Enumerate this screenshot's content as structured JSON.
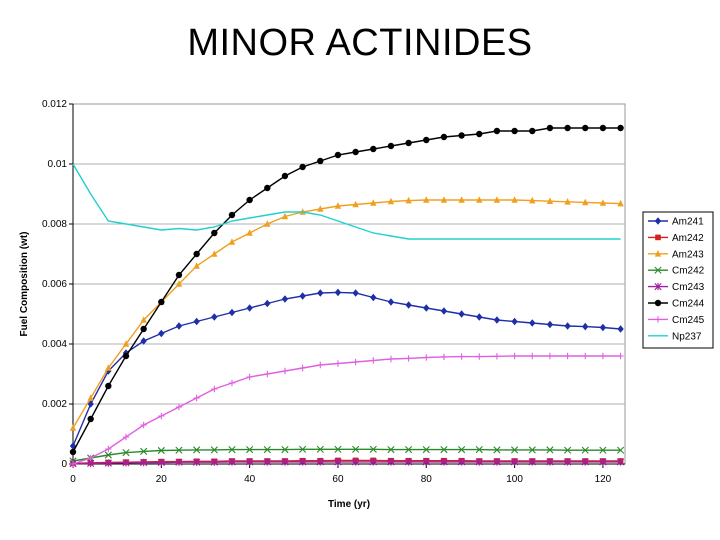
{
  "slide": {
    "title": "MINOR ACTINIDES"
  },
  "chart_data": {
    "type": "line",
    "xlabel": "Time (yr)",
    "ylabel": "Fuel Composition (wt)",
    "xlim": [
      0,
      125
    ],
    "ylim": [
      0,
      0.012
    ],
    "xticks": [
      0,
      20,
      40,
      60,
      80,
      100,
      120
    ],
    "yticks": [
      0,
      0.002,
      0.004,
      0.006,
      0.008,
      0.01,
      0.012
    ],
    "ytick_labels": [
      "0",
      "0.002",
      "0.004",
      "0.006",
      "0.008",
      "0.01",
      "0.012"
    ],
    "grid": "horizontal",
    "legend_position": "right",
    "x": [
      0,
      4,
      8,
      12,
      16,
      20,
      24,
      28,
      32,
      36,
      40,
      44,
      48,
      52,
      56,
      60,
      64,
      68,
      72,
      76,
      80,
      84,
      88,
      92,
      96,
      100,
      104,
      108,
      112,
      116,
      120,
      124
    ],
    "series": [
      {
        "name": "Am241",
        "color": "#1f2fa8",
        "marker": "diamond",
        "values": [
          0.0006,
          0.002,
          0.0031,
          0.0037,
          0.0041,
          0.00435,
          0.0046,
          0.00475,
          0.0049,
          0.00505,
          0.0052,
          0.00535,
          0.0055,
          0.0056,
          0.0057,
          0.00572,
          0.0057,
          0.00555,
          0.0054,
          0.0053,
          0.0052,
          0.0051,
          0.005,
          0.0049,
          0.0048,
          0.00475,
          0.0047,
          0.00465,
          0.0046,
          0.00458,
          0.00455,
          0.0045
        ]
      },
      {
        "name": "Am242",
        "color": "#d42020",
        "marker": "square",
        "values": [
          2e-05,
          4e-05,
          5e-05,
          6e-05,
          7e-05,
          8e-05,
          8e-05,
          9e-05,
          9e-05,
          0.0001,
          0.0001,
          0.0001,
          0.0001,
          0.00011,
          0.00011,
          0.00012,
          0.00012,
          0.00012,
          0.00011,
          0.00011,
          0.00011,
          0.00011,
          0.00011,
          0.0001,
          0.0001,
          0.0001,
          0.0001,
          0.0001,
          0.0001,
          0.0001,
          0.0001,
          0.0001
        ]
      },
      {
        "name": "Am243",
        "color": "#f0a020",
        "marker": "triangle",
        "values": [
          0.0012,
          0.0022,
          0.0032,
          0.004,
          0.0048,
          0.0054,
          0.006,
          0.0066,
          0.007,
          0.0074,
          0.0077,
          0.008,
          0.00825,
          0.0084,
          0.0085,
          0.0086,
          0.00865,
          0.0087,
          0.00875,
          0.00878,
          0.0088,
          0.0088,
          0.0088,
          0.0088,
          0.0088,
          0.0088,
          0.00878,
          0.00876,
          0.00874,
          0.00872,
          0.0087,
          0.00868
        ]
      },
      {
        "name": "Cm242",
        "color": "#2a8a2a",
        "marker": "x",
        "values": [
          0.0001,
          0.0002,
          0.0003,
          0.00038,
          0.00042,
          0.00045,
          0.00046,
          0.00047,
          0.00047,
          0.00048,
          0.00048,
          0.00048,
          0.00048,
          0.00049,
          0.00049,
          0.00049,
          0.00049,
          0.00049,
          0.00048,
          0.00048,
          0.00048,
          0.00048,
          0.00048,
          0.00048,
          0.00047,
          0.00047,
          0.00047,
          0.00047,
          0.00046,
          0.00046,
          0.00046,
          0.00046
        ]
      },
      {
        "name": "Cm243",
        "color": "#a020a0",
        "marker": "star",
        "values": [
          1e-05,
          2e-05,
          3e-05,
          4e-05,
          5e-05,
          5e-05,
          6e-05,
          6e-05,
          6e-05,
          7e-05,
          7e-05,
          7e-05,
          7e-05,
          7e-05,
          7e-05,
          7e-05,
          7e-05,
          7e-05,
          7e-05,
          7e-05,
          7e-05,
          7e-05,
          7e-05,
          7e-05,
          7e-05,
          7e-05,
          7e-05,
          7e-05,
          7e-05,
          7e-05,
          7e-05,
          7e-05
        ]
      },
      {
        "name": "Cm244",
        "color": "#000000",
        "marker": "circle",
        "values": [
          0.0004,
          0.0015,
          0.0026,
          0.0036,
          0.0045,
          0.0054,
          0.0063,
          0.007,
          0.0077,
          0.0083,
          0.0088,
          0.0092,
          0.0096,
          0.0099,
          0.0101,
          0.0103,
          0.0104,
          0.0105,
          0.0106,
          0.0107,
          0.0108,
          0.0109,
          0.01095,
          0.011,
          0.0111,
          0.0111,
          0.0111,
          0.0112,
          0.0112,
          0.0112,
          0.0112,
          0.0112
        ]
      },
      {
        "name": "Cm245",
        "color": "#e060e0",
        "marker": "plus",
        "values": [
          0.0,
          0.0002,
          0.0005,
          0.0009,
          0.0013,
          0.0016,
          0.0019,
          0.0022,
          0.0025,
          0.0027,
          0.0029,
          0.003,
          0.0031,
          0.0032,
          0.0033,
          0.00335,
          0.0034,
          0.00345,
          0.0035,
          0.00352,
          0.00355,
          0.00357,
          0.00358,
          0.00358,
          0.00359,
          0.0036,
          0.0036,
          0.0036,
          0.0036,
          0.0036,
          0.0036,
          0.0036
        ]
      },
      {
        "name": "Np237",
        "color": "#20d0d0",
        "marker": "none",
        "values": [
          0.01,
          0.009,
          0.0081,
          0.008,
          0.0079,
          0.0078,
          0.00785,
          0.0078,
          0.0079,
          0.0081,
          0.0082,
          0.0083,
          0.0084,
          0.0084,
          0.0083,
          0.0081,
          0.0079,
          0.0077,
          0.0076,
          0.0075,
          0.0075,
          0.0075,
          0.0075,
          0.0075,
          0.0075,
          0.0075,
          0.0075,
          0.0075,
          0.0075,
          0.0075,
          0.0075,
          0.0075
        ]
      }
    ]
  }
}
